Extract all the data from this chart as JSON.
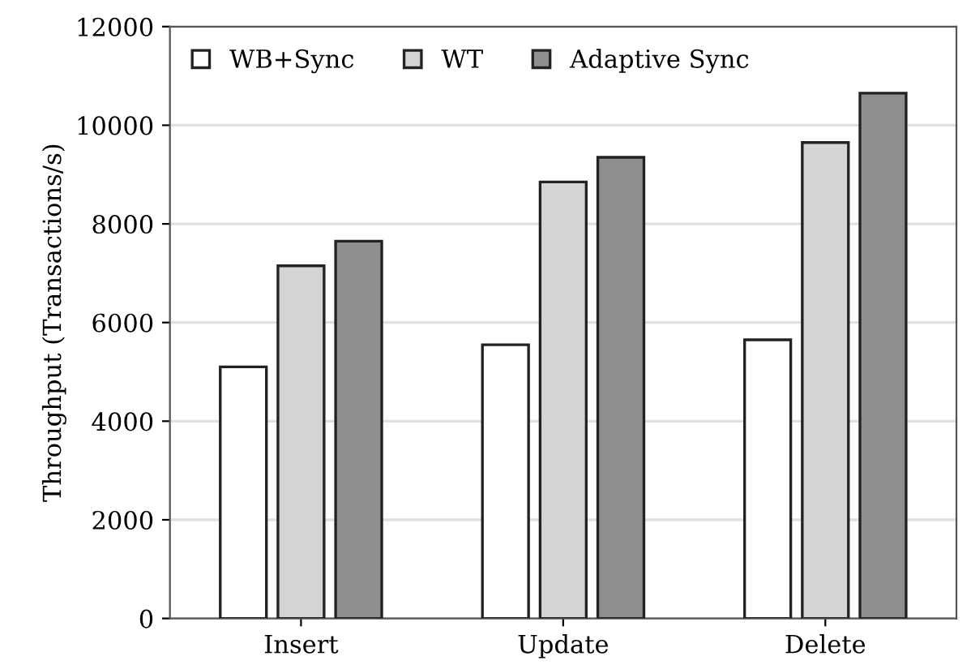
{
  "chart_data": {
    "type": "bar",
    "ylabel": "Throughput (Transactions/s)",
    "categories": [
      "Insert",
      "Update",
      "Delete"
    ],
    "series": [
      {
        "name": "WB+Sync",
        "color": "#ffffff",
        "values": [
          5100,
          5550,
          5650
        ]
      },
      {
        "name": "WT",
        "color": "#d4d4d4",
        "values": [
          7150,
          8850,
          9650
        ]
      },
      {
        "name": "Adaptive Sync",
        "color": "#8f8f8f",
        "values": [
          7650,
          9350,
          10650
        ]
      }
    ],
    "ylim": [
      0,
      12000
    ],
    "yticks": [
      0,
      2000,
      4000,
      6000,
      8000,
      10000,
      12000
    ],
    "grid": "y",
    "legend": "top left"
  }
}
